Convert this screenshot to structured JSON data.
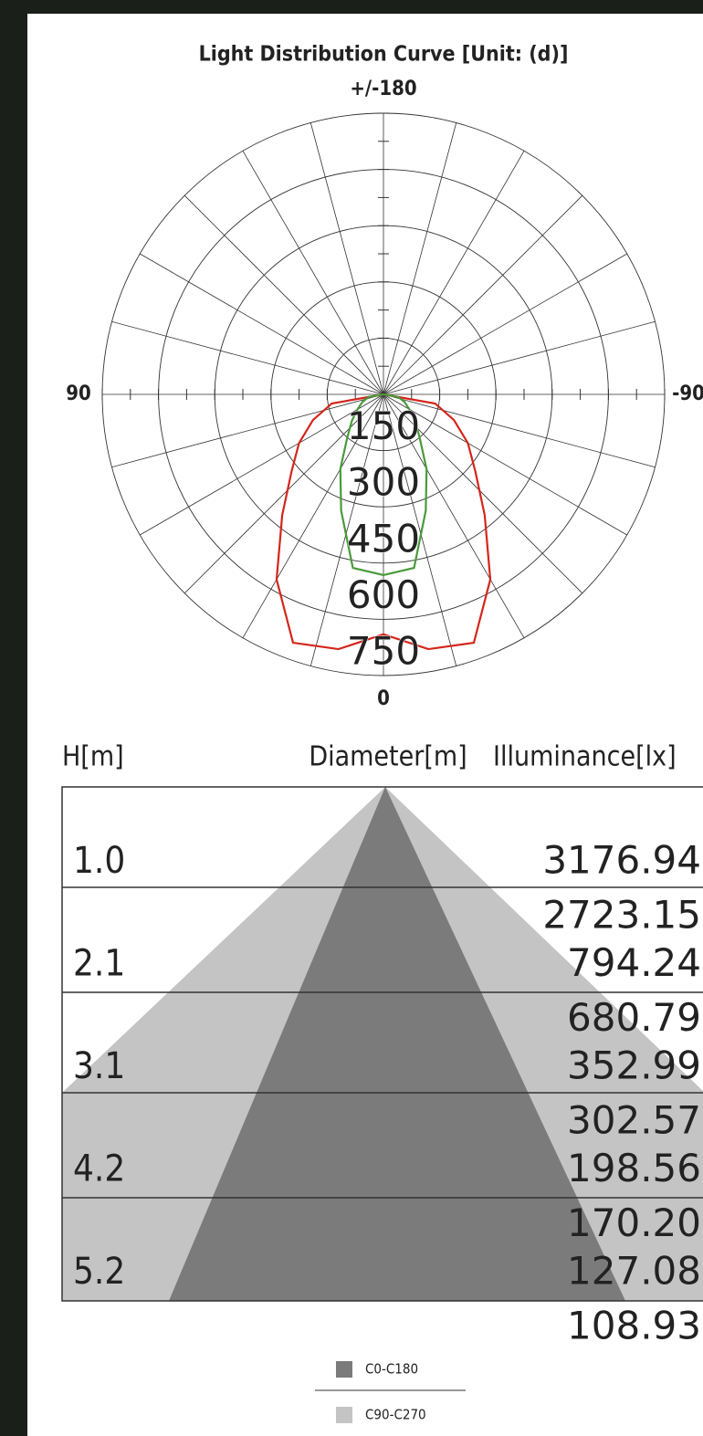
{
  "chart_data": {
    "type": "polar",
    "title": "Light Distribution Curve [Unit: (d)]",
    "angles": [
      0,
      10,
      20,
      30,
      40,
      50,
      60,
      70,
      80,
      90
    ],
    "rlim": [
      0,
      750
    ],
    "rticks": [
      150,
      300,
      450,
      600,
      750
    ],
    "angle_labels": [
      {
        "value": 180,
        "label": "+/-180"
      },
      {
        "value": 90,
        "label": "90"
      },
      {
        "value": -90,
        "label": "-90"
      },
      {
        "value": 0,
        "label": "0"
      }
    ],
    "series": [
      {
        "color": "#d3261b",
        "values": [
          640,
          690,
          705,
          570,
          420,
          320,
          260,
          200,
          140,
          0
        ]
      },
      {
        "color": "#4a9a3a",
        "values": [
          482,
          470,
          330,
          230,
          150,
          110,
          80,
          60,
          40,
          0
        ]
      }
    ]
  },
  "table": {
    "headers": [
      "H[m]",
      "Diameter[m]",
      "Illuminance[lx]"
    ],
    "rows": [
      {
        "h": "1.0",
        "illuminance": [
          "3176.94",
          "2723.15"
        ]
      },
      {
        "h": "2.1",
        "illuminance": [
          "794.24",
          "680.79"
        ]
      },
      {
        "h": "3.1",
        "illuminance": [
          "352.99",
          "302.57"
        ]
      },
      {
        "h": "4.2",
        "illuminance": [
          "198.56",
          "170.20"
        ]
      },
      {
        "h": "5.2",
        "illuminance": [
          "127.08",
          "108.93"
        ]
      }
    ]
  },
  "legend": [
    {
      "label": "C0-C180",
      "color": "#7b7b7b"
    },
    {
      "label": "C90-C270",
      "color": "#c4c4c4"
    }
  ]
}
